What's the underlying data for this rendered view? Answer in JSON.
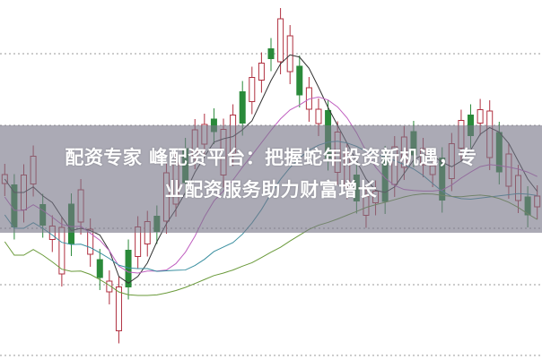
{
  "article": {
    "title_line1": "配资专家 峰配资平台：把握蛇年投资新机遇，专",
    "title_line2": "业配资服务助力财富增长"
  },
  "colors": {
    "up": "#b03040",
    "down": "#2a8a3a",
    "overlay": "#787687",
    "title": "#ffffff"
  }
}
